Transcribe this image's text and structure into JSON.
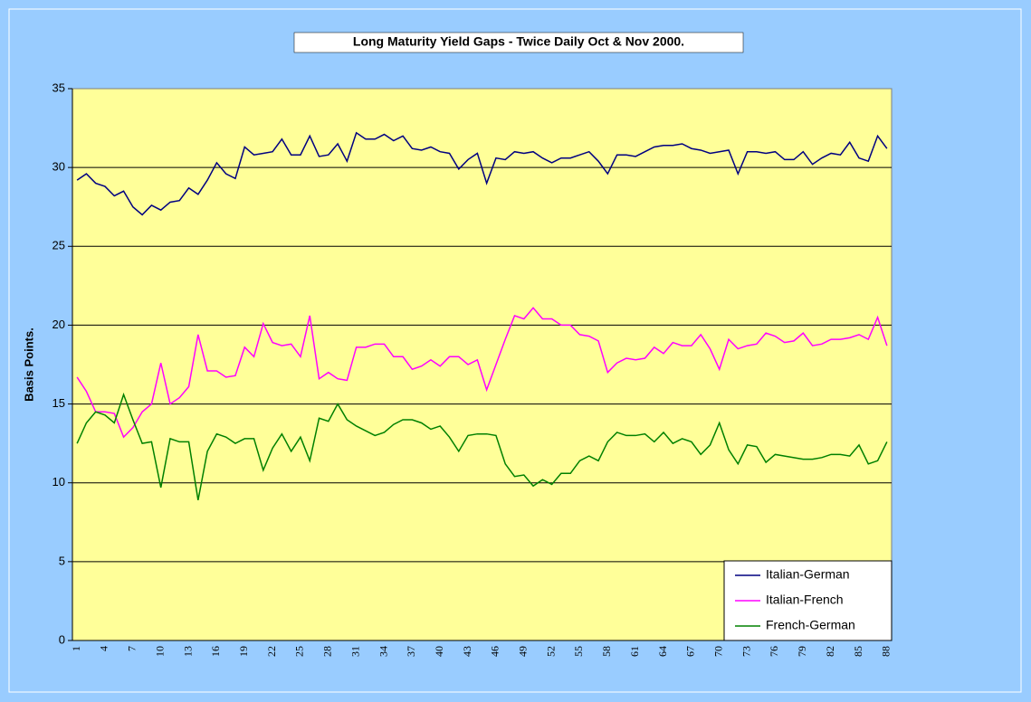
{
  "chart_data": {
    "type": "line",
    "title": "Long Maturity Yield Gaps - Twice Daily Oct & Nov 2000.",
    "y_label": "Basis Points.",
    "categories": [
      1,
      null,
      null,
      4,
      null,
      null,
      7,
      null,
      null,
      10,
      null,
      null,
      13,
      null,
      null,
      16,
      null,
      null,
      19,
      null,
      null,
      22,
      null,
      null,
      25,
      null,
      null,
      28,
      null,
      null,
      31,
      null,
      null,
      34,
      null,
      null,
      37,
      null,
      null,
      40,
      null,
      null,
      43,
      null,
      null,
      46,
      null,
      null,
      49,
      null,
      null,
      52,
      null,
      null,
      55,
      null,
      null,
      58,
      null,
      null,
      61,
      null,
      null,
      64,
      null,
      null,
      67,
      null,
      null,
      70,
      null,
      null,
      73,
      null,
      null,
      76,
      null,
      null,
      79,
      null,
      null,
      82,
      null,
      null,
      85,
      null,
      null,
      88
    ],
    "series": [
      {
        "name": "Italian-German",
        "color": "#000080",
        "values": [
          29.2,
          29.6,
          29.0,
          28.8,
          28.2,
          28.5,
          27.5,
          27.0,
          27.6,
          27.3,
          27.8,
          27.9,
          28.7,
          28.3,
          29.2,
          30.3,
          29.6,
          29.3,
          31.3,
          30.8,
          30.9,
          31.0,
          31.8,
          30.8,
          30.8,
          32.0,
          30.7,
          30.8,
          31.5,
          30.4,
          32.2,
          31.8,
          31.8,
          32.1,
          31.7,
          32.0,
          31.2,
          31.1,
          31.3,
          31.0,
          30.9,
          29.9,
          30.5,
          30.9,
          29.0,
          30.6,
          30.5,
          31.0,
          30.9,
          31.0,
          30.6,
          30.3,
          30.6,
          30.6,
          30.8,
          31.0,
          30.4,
          29.6,
          30.8,
          30.8,
          30.7,
          31.0,
          31.3,
          31.4,
          31.4,
          31.5,
          31.2,
          31.1,
          30.9,
          31.0,
          31.1,
          29.6,
          31.0,
          31.0,
          30.9,
          31.0,
          30.5,
          30.5,
          31.0,
          30.2,
          30.6,
          30.9,
          30.8,
          31.6,
          30.6,
          30.4,
          32.0,
          31.2
        ]
      },
      {
        "name": "Italian-French",
        "color": "#ff00ff",
        "values": [
          16.7,
          15.8,
          14.5,
          14.5,
          14.4,
          12.9,
          13.5,
          14.5,
          15.0,
          17.6,
          15.0,
          15.4,
          16.1,
          19.4,
          17.1,
          17.1,
          16.7,
          16.8,
          18.6,
          18.0,
          20.1,
          18.9,
          18.7,
          18.8,
          18.0,
          20.6,
          16.6,
          17.0,
          16.6,
          16.5,
          18.6,
          18.6,
          18.8,
          18.8,
          18.0,
          18.0,
          17.2,
          17.4,
          17.8,
          17.4,
          18.0,
          18.0,
          17.5,
          17.8,
          15.9,
          17.5,
          19.1,
          20.6,
          20.4,
          21.1,
          20.4,
          20.4,
          20.0,
          20.0,
          19.4,
          19.3,
          19.0,
          17.0,
          17.6,
          17.9,
          17.8,
          17.9,
          18.6,
          18.2,
          18.9,
          18.7,
          18.7,
          19.4,
          18.5,
          17.2,
          19.1,
          18.5,
          18.7,
          18.8,
          19.5,
          19.3,
          18.9,
          19.0,
          19.5,
          18.7,
          18.8,
          19.1,
          19.1,
          19.2,
          19.4,
          19.1,
          20.5,
          18.7
        ]
      },
      {
        "name": "French-German",
        "color": "#008000",
        "values": [
          12.5,
          13.8,
          14.5,
          14.3,
          13.8,
          15.6,
          14.0,
          12.5,
          12.6,
          9.7,
          12.8,
          12.6,
          12.6,
          8.9,
          12.0,
          13.1,
          12.9,
          12.5,
          12.8,
          12.8,
          10.8,
          12.2,
          13.1,
          12.0,
          12.9,
          11.4,
          14.1,
          13.9,
          15.0,
          14.0,
          13.6,
          13.3,
          13.0,
          13.2,
          13.7,
          14.0,
          14.0,
          13.8,
          13.4,
          13.6,
          12.9,
          12.0,
          13.0,
          13.1,
          13.1,
          13.0,
          11.2,
          10.4,
          10.5,
          9.8,
          10.2,
          9.9,
          10.6,
          10.6,
          11.4,
          11.7,
          11.4,
          12.6,
          13.2,
          13.0,
          13.0,
          13.1,
          12.6,
          13.2,
          12.5,
          12.8,
          12.6,
          11.8,
          12.4,
          13.8,
          12.1,
          11.2,
          12.4,
          12.3,
          11.3,
          11.8,
          11.7,
          11.6,
          11.5,
          11.5,
          11.6,
          11.8,
          11.8,
          11.7,
          12.4,
          11.2,
          11.4,
          12.6
        ]
      }
    ],
    "ylim": [
      0,
      35
    ],
    "yticks": [
      0,
      5,
      10,
      15,
      20,
      25,
      30,
      35
    ],
    "grid": true,
    "legend": "lower right",
    "plot_color": "#ffff99"
  }
}
